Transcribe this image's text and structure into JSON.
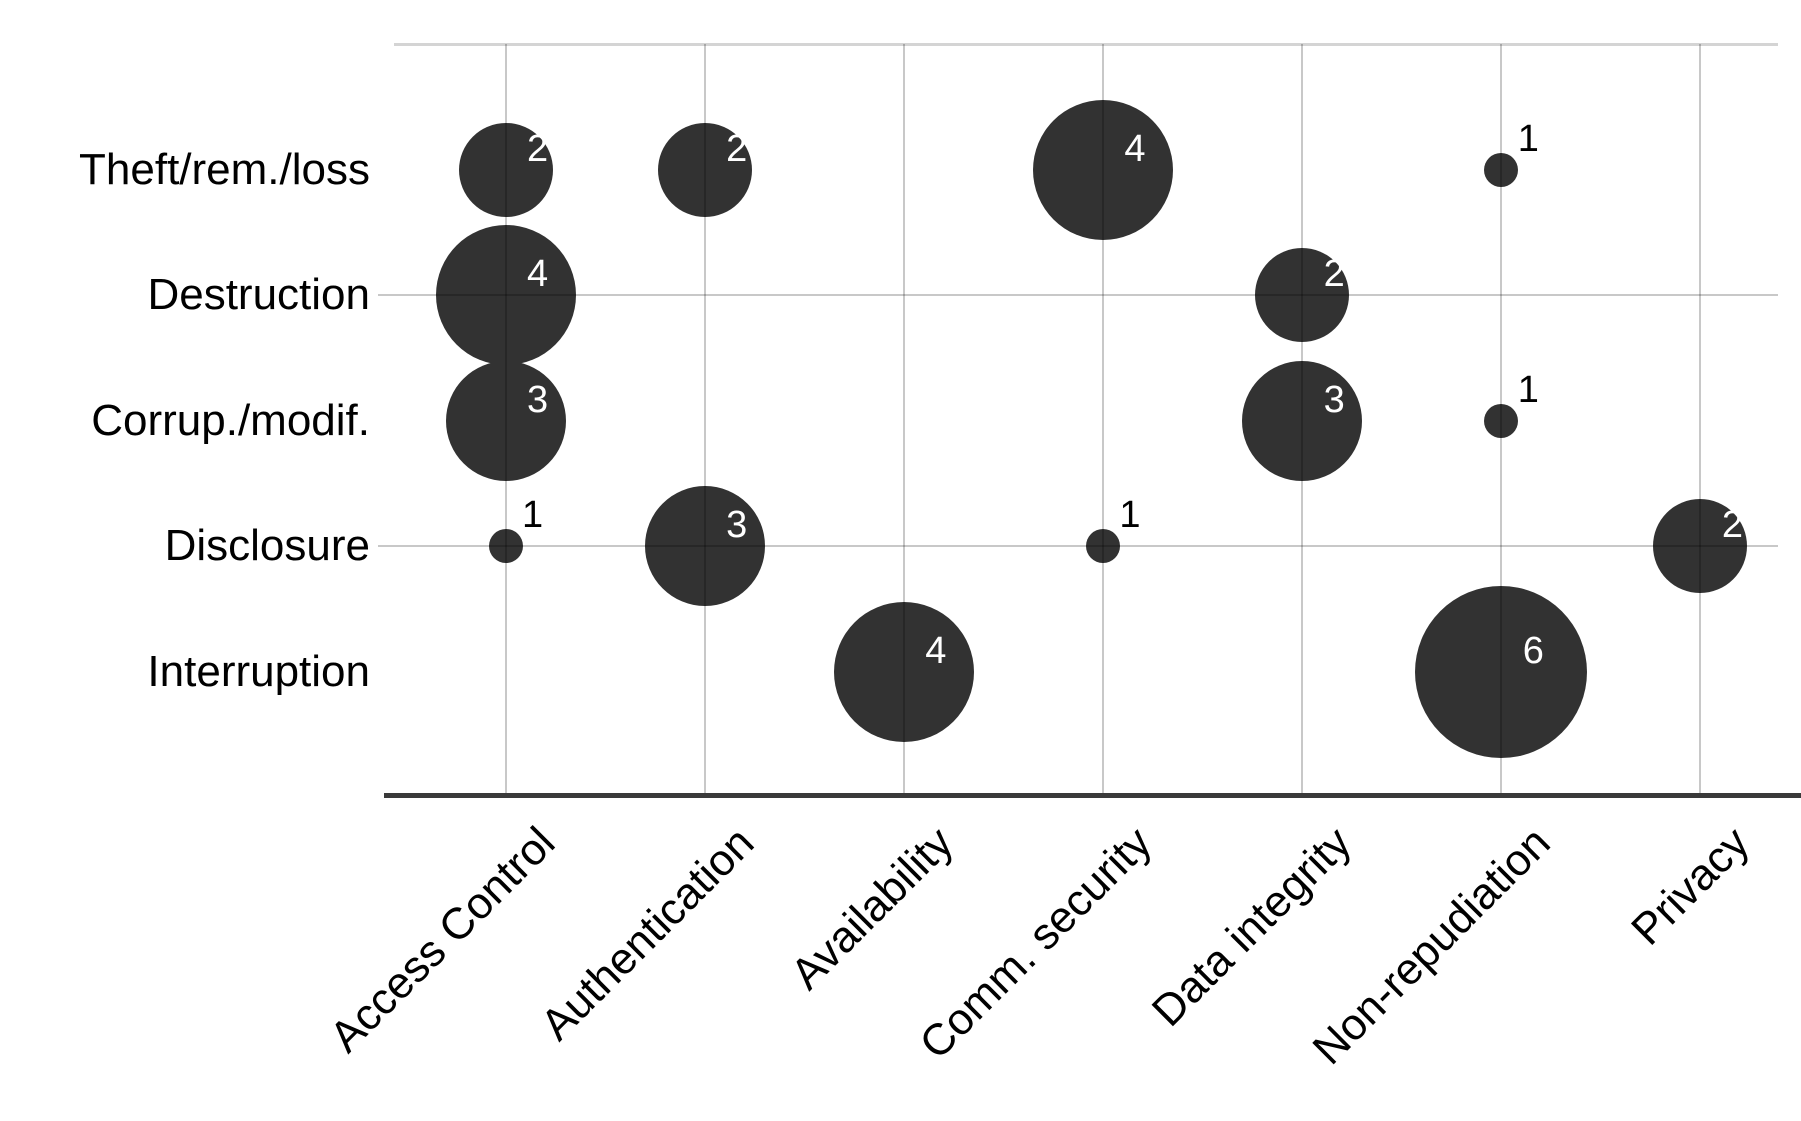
{
  "chart_data": {
    "type": "scatter",
    "variant": "bubble-matrix",
    "title": "",
    "x_axis_label": "",
    "y_axis_label": "",
    "x_categories": [
      "Access Control",
      "Authentication",
      "Availability",
      "Comm. security",
      "Data integrity",
      "Non-repudiation",
      "Privacy"
    ],
    "y_categories": [
      "Theft/rem./loss",
      "Destruction",
      "Corrup./modif.",
      "Disclosure",
      "Interruption"
    ],
    "points": [
      {
        "row": "Theft/rem./loss",
        "col": "Access Control",
        "value": 2
      },
      {
        "row": "Theft/rem./loss",
        "col": "Authentication",
        "value": 2
      },
      {
        "row": "Theft/rem./loss",
        "col": "Comm. security",
        "value": 4
      },
      {
        "row": "Theft/rem./loss",
        "col": "Non-repudiation",
        "value": 1
      },
      {
        "row": "Destruction",
        "col": "Access Control",
        "value": 4
      },
      {
        "row": "Destruction",
        "col": "Data integrity",
        "value": 2
      },
      {
        "row": "Corrup./modif.",
        "col": "Access Control",
        "value": 3
      },
      {
        "row": "Corrup./modif.",
        "col": "Data integrity",
        "value": 3
      },
      {
        "row": "Corrup./modif.",
        "col": "Non-repudiation",
        "value": 1
      },
      {
        "row": "Disclosure",
        "col": "Access Control",
        "value": 1
      },
      {
        "row": "Disclosure",
        "col": "Authentication",
        "value": 3
      },
      {
        "row": "Disclosure",
        "col": "Comm. security",
        "value": 1
      },
      {
        "row": "Disclosure",
        "col": "Privacy",
        "value": 2
      },
      {
        "row": "Interruption",
        "col": "Availability",
        "value": 4
      },
      {
        "row": "Interruption",
        "col": "Non-repudiation",
        "value": 6
      }
    ],
    "bubble_value_min": 1,
    "bubble_value_max": 6,
    "value_to_radius_px": {
      "1": 17,
      "2": 47,
      "3": 60,
      "4": 70,
      "6": 86
    },
    "colors": {
      "bubble_fill": "#323232",
      "bubble_number_text": "#ffffff",
      "outside_number_text": "#000000",
      "gridline": "rgba(0,0,0,0.215)",
      "top_border": "rgba(0,0,0,0.17)",
      "axis_line": "#3a3a3a",
      "label_text": "#000000",
      "background": "#ffffff"
    },
    "layout": {
      "grid": "on",
      "legend": "none",
      "x_tick_label_angle_deg": 45,
      "h_gridlines_at_rows": [
        "Destruction",
        "Disclosure"
      ],
      "h_gridline_row_indices": [
        1,
        3
      ],
      "v_gridlines": "all-columns",
      "gridlines_drawn_over_bubbles": true
    }
  }
}
